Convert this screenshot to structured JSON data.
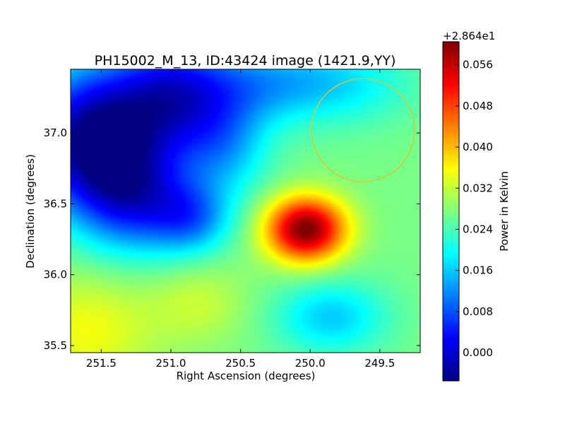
{
  "chart_data": {
    "type": "heatmap",
    "title": "PH15002_M_13, ID:43424 image (1421.9,YY)",
    "xlabel": "Right Ascension (degrees)",
    "ylabel": "Declination (degrees)",
    "x_range": [
      251.72,
      249.21
    ],
    "y_range": [
      35.45,
      37.45
    ],
    "x_ticks": [
      {
        "value": 251.5,
        "label": "251.5"
      },
      {
        "value": 251.0,
        "label": "251.0"
      },
      {
        "value": 250.5,
        "label": "250.5"
      },
      {
        "value": 250.0,
        "label": "250.0"
      },
      {
        "value": 249.5,
        "label": "249.5"
      }
    ],
    "y_ticks": [
      {
        "value": 35.5,
        "label": "35.5"
      },
      {
        "value": 36.0,
        "label": "36.0"
      },
      {
        "value": 36.5,
        "label": "36.5"
      },
      {
        "value": 37.0,
        "label": "37.0"
      }
    ],
    "colorbar": {
      "label": "Power in Kelvin",
      "offset_label": "+2.864e1",
      "colormap": "jet",
      "range": [
        -0.0055,
        0.0605
      ],
      "ticks": [
        {
          "value": 0.0,
          "label": "0.000"
        },
        {
          "value": 0.008,
          "label": "0.008"
        },
        {
          "value": 0.016,
          "label": "0.016"
        },
        {
          "value": 0.024,
          "label": "0.024"
        },
        {
          "value": 0.032,
          "label": "0.032"
        },
        {
          "value": 0.04,
          "label": "0.040"
        },
        {
          "value": 0.048,
          "label": "0.048"
        },
        {
          "value": 0.056,
          "label": "0.056"
        }
      ]
    },
    "features": [
      {
        "kind": "baseline",
        "value": 0.027
      },
      {
        "kind": "peak",
        "ra": 250.03,
        "dec": 36.32,
        "sx": 0.2,
        "sy": 0.16,
        "amp": 0.034
      },
      {
        "kind": "cold",
        "ra": 251.6,
        "dec": 36.95,
        "sx": 0.32,
        "sy": 0.35,
        "amp": -0.03
      },
      {
        "kind": "cold",
        "ra": 251.0,
        "dec": 37.25,
        "sx": 0.32,
        "sy": 0.3,
        "amp": -0.024
      },
      {
        "kind": "cold",
        "ra": 251.25,
        "dec": 36.55,
        "sx": 0.28,
        "sy": 0.28,
        "amp": -0.02
      },
      {
        "kind": "cold",
        "ra": 250.85,
        "dec": 36.4,
        "sx": 0.2,
        "sy": 0.18,
        "amp": -0.014
      },
      {
        "kind": "cold",
        "ra": 250.6,
        "dec": 36.9,
        "sx": 0.22,
        "sy": 0.25,
        "amp": -0.01
      },
      {
        "kind": "cold",
        "ra": 250.35,
        "dec": 37.35,
        "sx": 0.35,
        "sy": 0.2,
        "amp": -0.011
      },
      {
        "kind": "cold",
        "ra": 249.75,
        "dec": 37.35,
        "sx": 0.35,
        "sy": 0.2,
        "amp": -0.008
      },
      {
        "kind": "cold",
        "ra": 249.85,
        "dec": 35.7,
        "sx": 0.28,
        "sy": 0.18,
        "amp": -0.011
      },
      {
        "kind": "warm",
        "ra": 251.6,
        "dec": 35.6,
        "sx": 0.35,
        "sy": 0.3,
        "amp": 0.008
      },
      {
        "kind": "warm",
        "ra": 250.8,
        "dec": 35.8,
        "sx": 0.25,
        "sy": 0.2,
        "amp": 0.005
      }
    ],
    "annotations": [
      {
        "kind": "circle",
        "ra": 249.62,
        "dec": 37.02,
        "radius_deg": 0.37,
        "color": "#d2c832"
      }
    ],
    "grid": false
  }
}
